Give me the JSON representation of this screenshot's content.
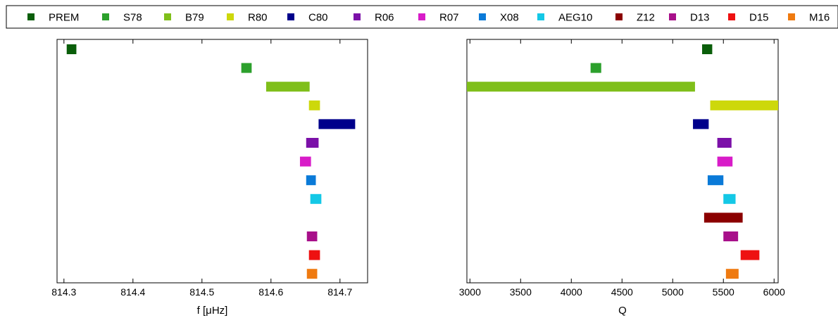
{
  "legend": [
    {
      "name": "PREM",
      "color": "#0a5e0a"
    },
    {
      "name": "S78",
      "color": "#2ca02c"
    },
    {
      "name": "B79",
      "color": "#7fbf1a"
    },
    {
      "name": "R80",
      "color": "#cdd80b"
    },
    {
      "name": "C80",
      "color": "#00008b"
    },
    {
      "name": "R06",
      "color": "#7b10a8"
    },
    {
      "name": "R07",
      "color": "#d81cc8"
    },
    {
      "name": "X08",
      "color": "#0a7ad8"
    },
    {
      "name": "AEG10",
      "color": "#14c8e6"
    },
    {
      "name": "Z12",
      "color": "#8b0000"
    },
    {
      "name": "D13",
      "color": "#a8108a"
    },
    {
      "name": "D15",
      "color": "#ee1111"
    },
    {
      "name": "M16",
      "color": "#ef7a10"
    }
  ],
  "chart_data": [
    {
      "type": "bar",
      "orientation": "horizontal",
      "title": "",
      "xlabel": "f [μHz]",
      "ylabel": "",
      "xlim": [
        814.29,
        814.74
      ],
      "xticks": [
        "814.3",
        "814.4",
        "814.5",
        "814.6",
        "814.7"
      ],
      "xtick_values": [
        814.3,
        814.4,
        814.5,
        814.6,
        814.7
      ],
      "grid": false,
      "rows": [
        {
          "name": "PREM",
          "min": 814.304,
          "max": 814.318
        },
        {
          "name": "S78",
          "min": 814.557,
          "max": 814.572
        },
        {
          "name": "B79",
          "min": 814.593,
          "max": 814.656
        },
        {
          "name": "R80",
          "min": 814.655,
          "max": 814.671
        },
        {
          "name": "C80",
          "min": 814.669,
          "max": 814.722
        },
        {
          "name": "R06",
          "min": 814.651,
          "max": 814.669
        },
        {
          "name": "R07",
          "min": 814.642,
          "max": 814.658
        },
        {
          "name": "X08",
          "min": 814.651,
          "max": 814.665
        },
        {
          "name": "AEG10",
          "min": 814.657,
          "max": 814.673
        },
        {
          "name": "Z12",
          "min": null,
          "max": null
        },
        {
          "name": "D13",
          "min": 814.652,
          "max": 814.667
        },
        {
          "name": "D15",
          "min": 814.655,
          "max": 814.671
        },
        {
          "name": "M16",
          "min": 814.652,
          "max": 814.667
        }
      ]
    },
    {
      "type": "bar",
      "orientation": "horizontal",
      "title": "",
      "xlabel": "Q",
      "ylabel": "",
      "xlim": [
        2970,
        6040
      ],
      "xticks": [
        "3000",
        "3500",
        "4000",
        "4500",
        "5000",
        "5500",
        "6000"
      ],
      "xtick_values": [
        3000,
        3500,
        4000,
        4500,
        5000,
        5500,
        6000
      ],
      "grid": false,
      "rows": [
        {
          "name": "PREM",
          "min": 5290,
          "max": 5390
        },
        {
          "name": "S78",
          "min": 4190,
          "max": 4295
        },
        {
          "name": "B79",
          "min": 2970,
          "max": 5220
        },
        {
          "name": "R80",
          "min": 5370,
          "max": 6040
        },
        {
          "name": "C80",
          "min": 5200,
          "max": 5355
        },
        {
          "name": "R06",
          "min": 5440,
          "max": 5580
        },
        {
          "name": "R07",
          "min": 5440,
          "max": 5590
        },
        {
          "name": "X08",
          "min": 5345,
          "max": 5500
        },
        {
          "name": "AEG10",
          "min": 5500,
          "max": 5620
        },
        {
          "name": "Z12",
          "min": 5310,
          "max": 5690
        },
        {
          "name": "D13",
          "min": 5500,
          "max": 5645
        },
        {
          "name": "D15",
          "min": 5670,
          "max": 5855
        },
        {
          "name": "M16",
          "min": 5525,
          "max": 5650
        }
      ]
    }
  ]
}
